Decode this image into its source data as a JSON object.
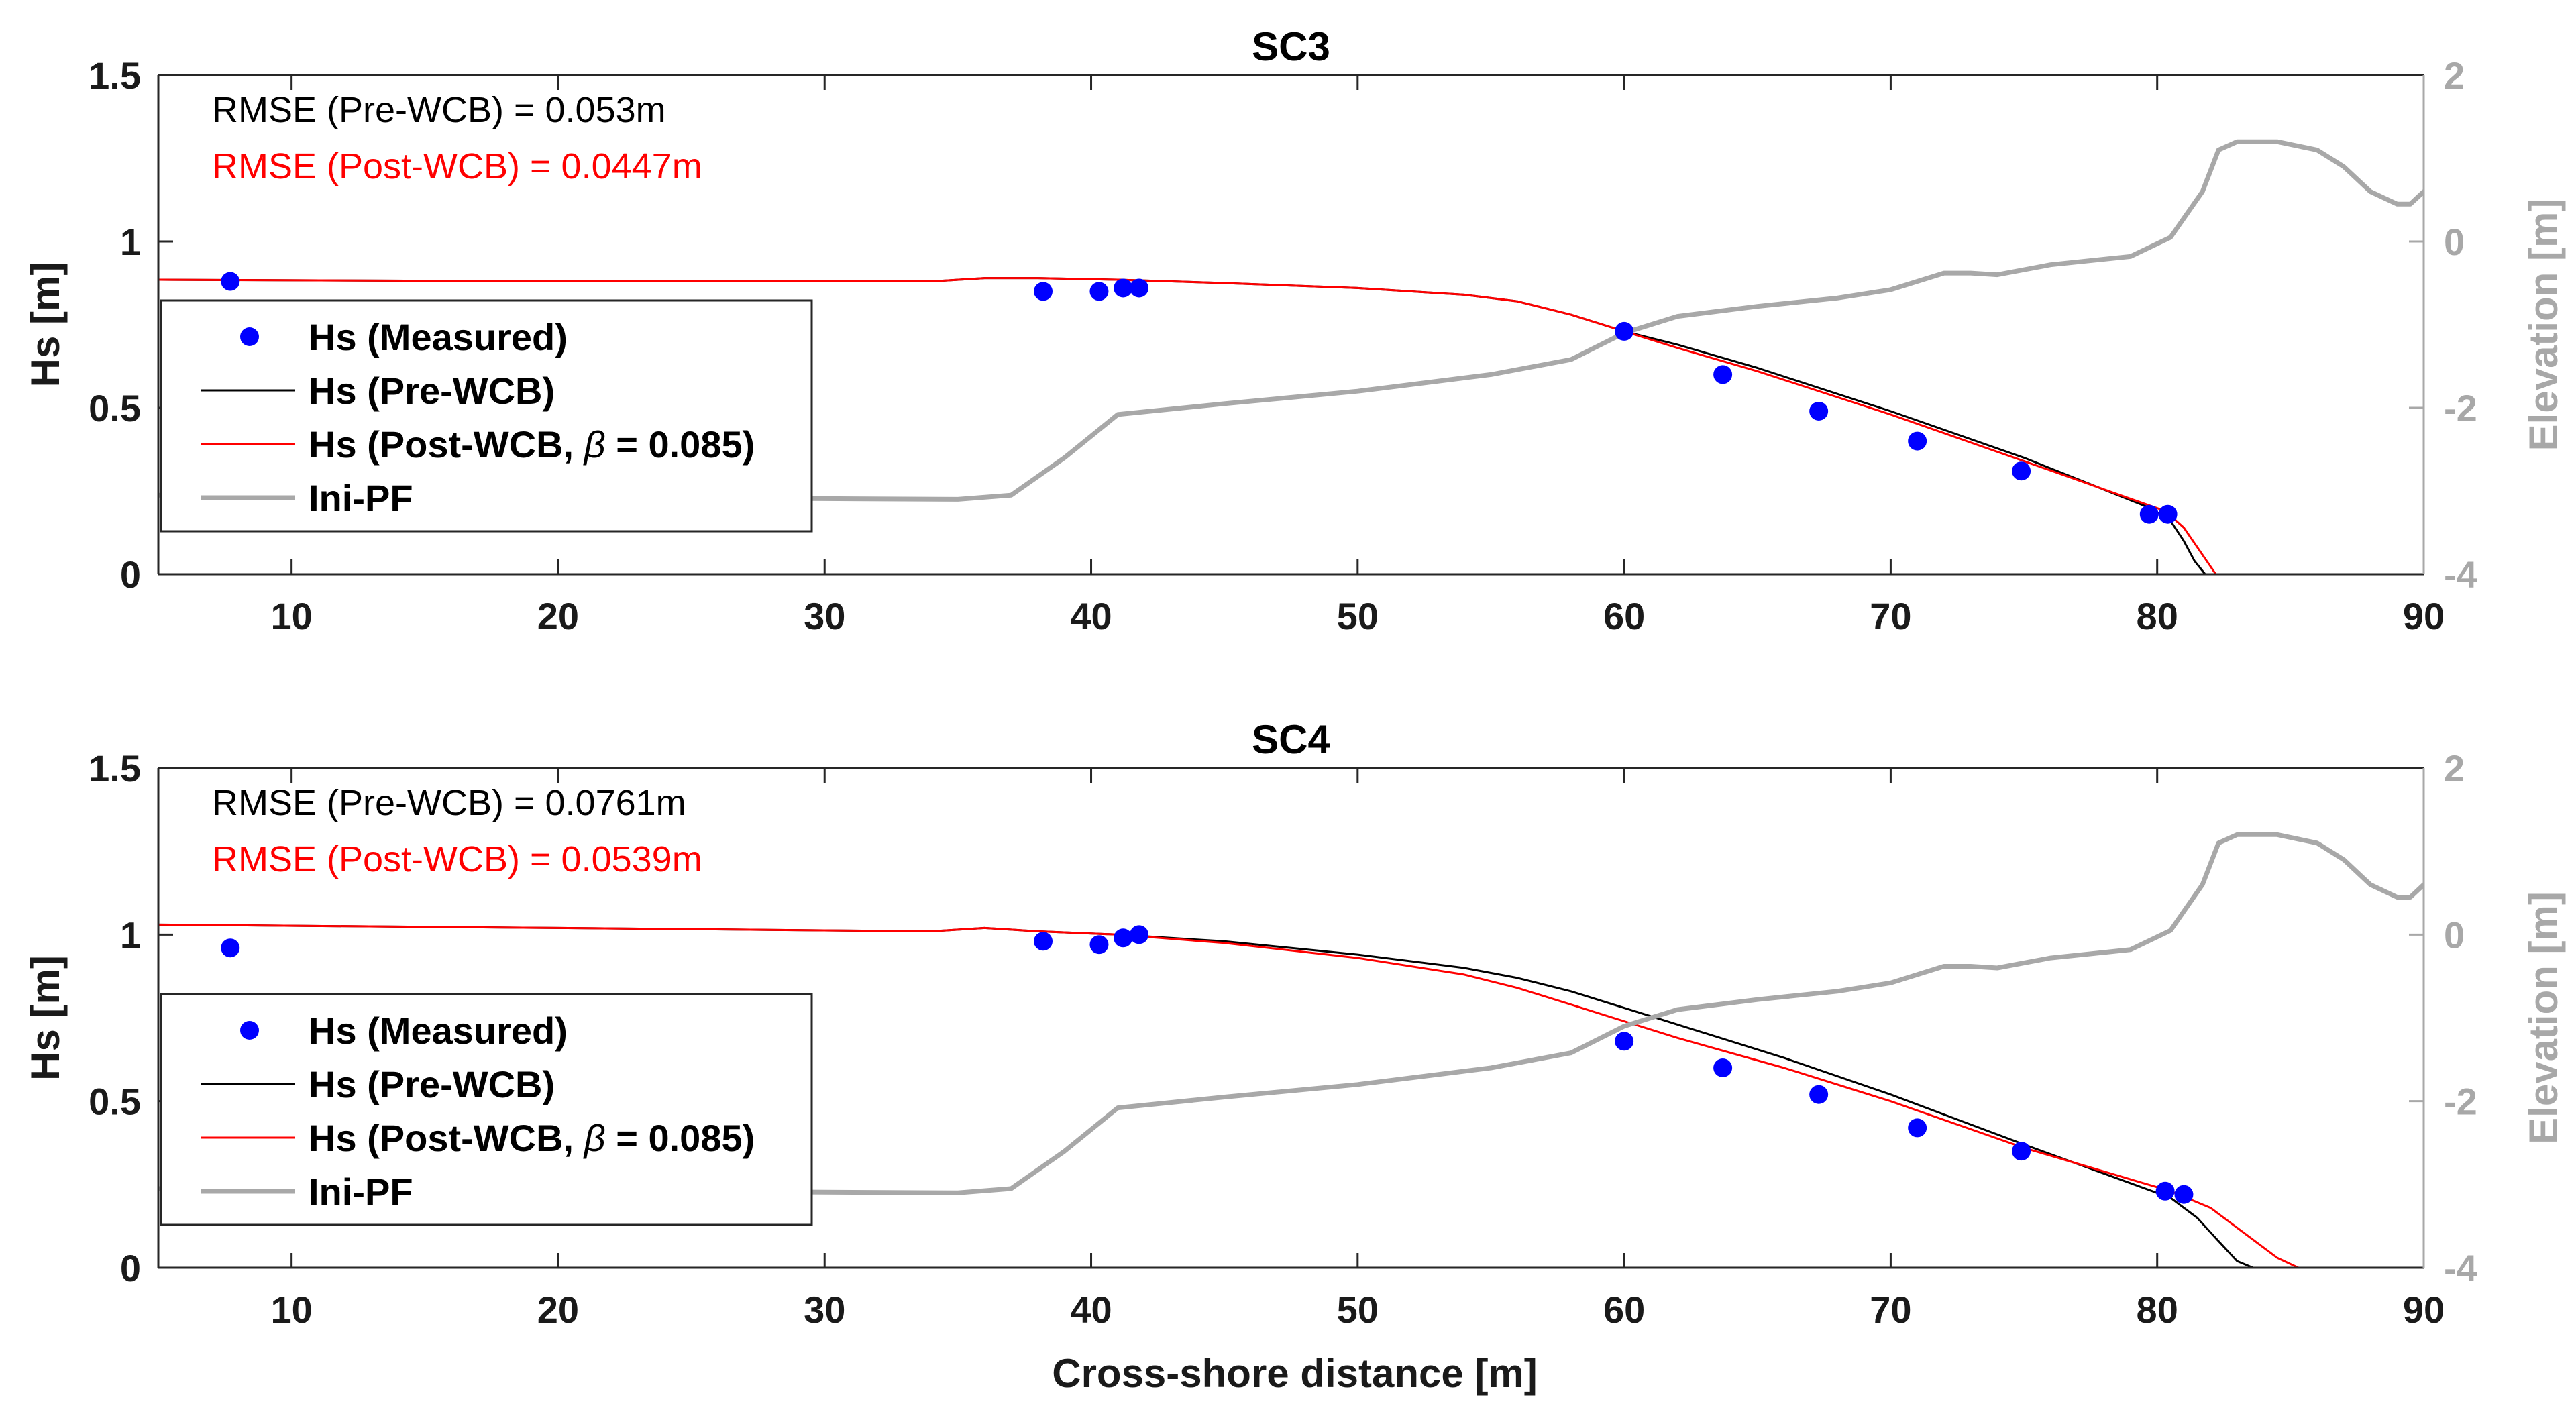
{
  "figure": {
    "xlabel": "Cross-shore distance [m]"
  },
  "chart_data": [
    {
      "type": "line",
      "title": "SC3",
      "xlabel": "Cross-shore distance [m]",
      "ylabel": "Hs [m]",
      "ylabel_right": "Elevation [m]",
      "xlim": [
        5,
        90
      ],
      "ylim": [
        0,
        1.5
      ],
      "ylim_right": [
        -4,
        2
      ],
      "xticks": [
        "10",
        "20",
        "30",
        "40",
        "50",
        "60",
        "70",
        "80",
        "90"
      ],
      "yticks": [
        "0",
        "0.5",
        "1",
        "1.5"
      ],
      "yticks_right": [
        "-4",
        "-2",
        "0",
        "2"
      ],
      "annotations": [
        {
          "text": "RMSE (Pre-WCB) = 0.053m",
          "color": "#000000"
        },
        {
          "text": "RMSE (Post-WCB) = 0.0447m",
          "color": "#ff0000"
        }
      ],
      "legend": {
        "position": "lower-left",
        "entries": [
          {
            "label": "Hs (Measured)",
            "style": "marker",
            "color": "#0000ff"
          },
          {
            "label": "Hs (Pre-WCB)",
            "style": "line",
            "color": "#000000"
          },
          {
            "label_prefix": "Hs (Post-WCB, ",
            "symbol": "β",
            "label_suffix": " = 0.085)",
            "style": "line",
            "color": "#ff0000"
          },
          {
            "label": "Ini-PF",
            "style": "line-thick",
            "color": "#a8a8a8"
          }
        ]
      },
      "series": [
        {
          "name": "Hs (Measured)",
          "kind": "scatter",
          "axis": "left",
          "color": "#0000ff",
          "x": [
            7.7,
            38.2,
            40.3,
            41.2,
            41.8,
            60.0,
            63.7,
            67.3,
            71.0,
            74.9,
            79.7,
            80.4
          ],
          "y": [
            0.88,
            0.85,
            0.85,
            0.86,
            0.86,
            0.73,
            0.6,
            0.49,
            0.4,
            0.31,
            0.18,
            0.18
          ]
        },
        {
          "name": "Hs (Pre-WCB)",
          "kind": "line",
          "axis": "left",
          "color": "#000000",
          "width": 3,
          "x": [
            5,
            20,
            34,
            36,
            38,
            41,
            45,
            50,
            54,
            56,
            58,
            60,
            62,
            65,
            70,
            75,
            79.7,
            80.5,
            81.0,
            81.4,
            81.8,
            90
          ],
          "y": [
            0.885,
            0.88,
            0.88,
            0.89,
            0.89,
            0.885,
            0.875,
            0.86,
            0.84,
            0.82,
            0.78,
            0.73,
            0.69,
            0.62,
            0.49,
            0.35,
            0.2,
            0.16,
            0.1,
            0.04,
            0.0,
            0.0
          ]
        },
        {
          "name": "Hs (Post-WCB, β = 0.085)",
          "kind": "line",
          "axis": "left",
          "color": "#ff0000",
          "width": 3,
          "x": [
            5,
            20,
            34,
            36,
            38,
            41,
            45,
            50,
            54,
            56,
            58,
            60,
            62,
            65,
            70,
            75,
            80.3,
            81.0,
            81.6,
            82.2,
            90
          ],
          "y": [
            0.885,
            0.88,
            0.88,
            0.89,
            0.89,
            0.885,
            0.875,
            0.86,
            0.84,
            0.82,
            0.78,
            0.73,
            0.68,
            0.61,
            0.48,
            0.34,
            0.19,
            0.14,
            0.07,
            0.0,
            0.0
          ]
        },
        {
          "name": "Ini-PF",
          "kind": "line",
          "axis": "right",
          "color": "#a8a8a8",
          "width": 7,
          "x": [
            5,
            35,
            37,
            39,
            41,
            45,
            50,
            55,
            58,
            60,
            62,
            65,
            68,
            70,
            72,
            73,
            74,
            76,
            79,
            80.5,
            81.7,
            82.3,
            83,
            84.5,
            86,
            87,
            88,
            89,
            89.5,
            90
          ],
          "y": [
            -3.05,
            -3.1,
            -3.05,
            -2.6,
            -2.08,
            -1.95,
            -1.8,
            -1.6,
            -1.42,
            -1.1,
            -0.9,
            -0.78,
            -0.68,
            -0.58,
            -0.38,
            -0.38,
            -0.4,
            -0.28,
            -0.18,
            0.05,
            0.6,
            1.1,
            1.2,
            1.2,
            1.1,
            0.9,
            0.6,
            0.45,
            0.45,
            0.6
          ]
        }
      ]
    },
    {
      "type": "line",
      "title": "SC4",
      "xlabel": "Cross-shore distance [m]",
      "ylabel": "Hs [m]",
      "ylabel_right": "Elevation [m]",
      "xlim": [
        5,
        90
      ],
      "ylim": [
        0,
        1.5
      ],
      "ylim_right": [
        -4,
        2
      ],
      "xticks": [
        "10",
        "20",
        "30",
        "40",
        "50",
        "60",
        "70",
        "80",
        "90"
      ],
      "yticks": [
        "0",
        "0.5",
        "1",
        "1.5"
      ],
      "yticks_right": [
        "-4",
        "-2",
        "0",
        "2"
      ],
      "annotations": [
        {
          "text": "RMSE (Pre-WCB) = 0.0761m",
          "color": "#000000"
        },
        {
          "text": "RMSE (Post-WCB) = 0.0539m",
          "color": "#ff0000"
        }
      ],
      "legend": {
        "position": "lower-left",
        "entries": [
          {
            "label": "Hs (Measured)",
            "style": "marker",
            "color": "#0000ff"
          },
          {
            "label": "Hs (Pre-WCB)",
            "style": "line",
            "color": "#000000"
          },
          {
            "label_prefix": "Hs (Post-WCB, ",
            "symbol": "β",
            "label_suffix": " = 0.085)",
            "style": "line",
            "color": "#ff0000"
          },
          {
            "label": "Ini-PF",
            "style": "line-thick",
            "color": "#a8a8a8"
          }
        ]
      },
      "series": [
        {
          "name": "Hs (Measured)",
          "kind": "scatter",
          "axis": "left",
          "color": "#0000ff",
          "x": [
            7.7,
            38.2,
            40.3,
            41.2,
            41.8,
            60.0,
            63.7,
            67.3,
            71.0,
            74.9,
            80.3,
            81.0
          ],
          "y": [
            0.96,
            0.98,
            0.97,
            0.99,
            1.0,
            0.68,
            0.6,
            0.52,
            0.42,
            0.35,
            0.23,
            0.22
          ]
        },
        {
          "name": "Hs (Pre-WCB)",
          "kind": "line",
          "axis": "left",
          "color": "#000000",
          "width": 3,
          "x": [
            5,
            20,
            34,
            36,
            38,
            41,
            45,
            50,
            54,
            56,
            58,
            60,
            62,
            66,
            70,
            75,
            80.5,
            81.5,
            82.3,
            83.0,
            83.6,
            90
          ],
          "y": [
            1.03,
            1.02,
            1.01,
            1.02,
            1.01,
            1.0,
            0.98,
            0.94,
            0.9,
            0.87,
            0.83,
            0.78,
            0.73,
            0.63,
            0.52,
            0.37,
            0.21,
            0.15,
            0.08,
            0.02,
            0.0,
            0.0
          ]
        },
        {
          "name": "Hs (Post-WCB, β = 0.085)",
          "kind": "line",
          "axis": "left",
          "color": "#ff0000",
          "width": 3,
          "x": [
            5,
            20,
            34,
            36,
            38,
            41,
            45,
            50,
            54,
            56,
            58,
            60,
            62,
            66,
            70,
            75,
            80.5,
            82,
            83.5,
            84.5,
            85.3,
            90
          ],
          "y": [
            1.03,
            1.02,
            1.01,
            1.02,
            1.01,
            1.0,
            0.975,
            0.93,
            0.88,
            0.84,
            0.79,
            0.74,
            0.69,
            0.6,
            0.5,
            0.36,
            0.23,
            0.18,
            0.09,
            0.03,
            0.0,
            0.0
          ]
        },
        {
          "name": "Ini-PF",
          "kind": "line",
          "axis": "right",
          "color": "#a8a8a8",
          "width": 7,
          "x": [
            5,
            35,
            37,
            39,
            41,
            45,
            50,
            55,
            58,
            60,
            62,
            65,
            68,
            70,
            72,
            73,
            74,
            76,
            79,
            80.5,
            81.7,
            82.3,
            83,
            84.5,
            86,
            87,
            88,
            89,
            89.5,
            90
          ],
          "y": [
            -3.05,
            -3.1,
            -3.05,
            -2.6,
            -2.08,
            -1.95,
            -1.8,
            -1.6,
            -1.42,
            -1.1,
            -0.9,
            -0.78,
            -0.68,
            -0.58,
            -0.38,
            -0.38,
            -0.4,
            -0.28,
            -0.18,
            0.05,
            0.6,
            1.1,
            1.2,
            1.2,
            1.1,
            0.9,
            0.6,
            0.45,
            0.45,
            0.6
          ]
        }
      ]
    }
  ]
}
